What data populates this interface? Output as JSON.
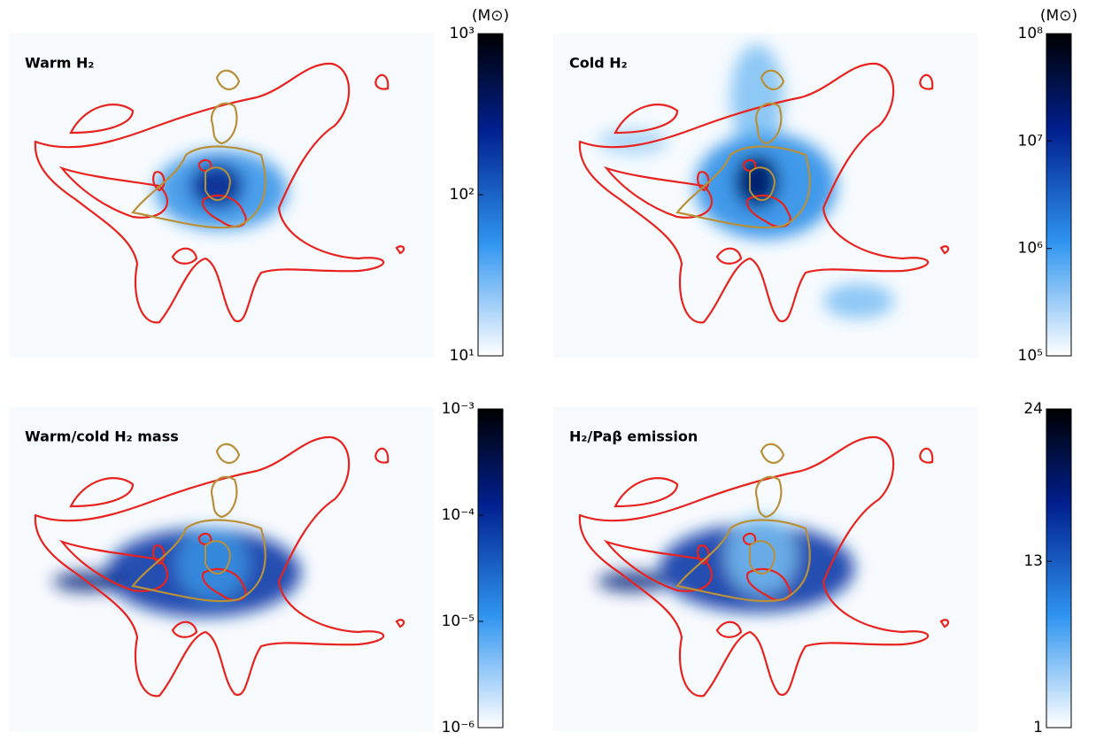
{
  "panels": [
    {
      "title": "Warm H₂",
      "unit": "(M⊙)",
      "colorbar": {
        "scale": "log",
        "lim": [
          10,
          1000
        ],
        "ticks": [
          {
            "value": 1000,
            "label": "10³"
          },
          {
            "value": 100,
            "label": "10²"
          },
          {
            "value": 10,
            "label": "10¹"
          }
        ]
      }
    },
    {
      "title": "Cold H₂",
      "unit": "(M⊙)",
      "colorbar": {
        "scale": "log",
        "lim": [
          100000,
          100000000
        ],
        "ticks": [
          {
            "value": 100000000,
            "label": "10⁸"
          },
          {
            "value": 10000000,
            "label": "10⁷"
          },
          {
            "value": 1000000,
            "label": "10⁶"
          },
          {
            "value": 100000,
            "label": "10⁵"
          }
        ]
      }
    },
    {
      "title": "Warm/cold H₂ mass",
      "colorbar": {
        "scale": "log",
        "lim": [
          1e-06,
          0.001
        ],
        "ticks": [
          {
            "value": 0.001,
            "label": "10⁻³"
          },
          {
            "value": 0.0001,
            "label": "10⁻⁴"
          },
          {
            "value": 1e-05,
            "label": "10⁻⁵"
          },
          {
            "value": 1e-06,
            "label": "10⁻⁶"
          }
        ]
      }
    },
    {
      "title": "H₂/Paβ emission",
      "colorbar": {
        "scale": "linear",
        "lim": [
          1,
          24
        ],
        "ticks": [
          24,
          13,
          1
        ]
      }
    }
  ]
}
